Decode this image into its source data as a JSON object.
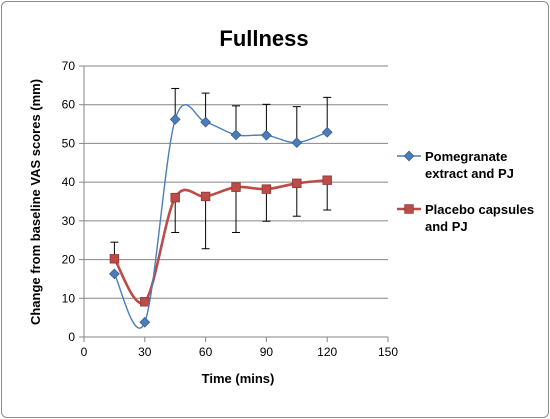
{
  "chart_data": {
    "type": "line",
    "title": "Fullness",
    "xlabel": "Time (mins)",
    "ylabel": "Change from baseline VAS scores (mm)",
    "xlim": [
      0,
      150
    ],
    "ylim": [
      0,
      70
    ],
    "x_ticks": [
      0,
      30,
      60,
      90,
      120,
      150
    ],
    "y_ticks": [
      0,
      10,
      20,
      30,
      40,
      50,
      60,
      70
    ],
    "grid": "horizontal",
    "legend_position": "right",
    "smoothed": true,
    "series": [
      {
        "name": "Pomegranate extract and PJ",
        "legend_lines": [
          "Pomegranate",
          "extract and PJ"
        ],
        "color": "#4a7ebb",
        "marker": "diamond",
        "x": [
          15,
          30,
          45,
          60,
          75,
          90,
          105,
          120
        ],
        "y": [
          16.3,
          3.8,
          56.2,
          55.5,
          52.2,
          52.1,
          50.2,
          52.9
        ],
        "error_plus": [
          0,
          0,
          8,
          7.5,
          7.5,
          8,
          9.3,
          9
        ],
        "error_minus": [
          0,
          0,
          0,
          0,
          0,
          0,
          0,
          0
        ]
      },
      {
        "name": "Placebo capsules and PJ",
        "legend_lines": [
          "Placebo capsules",
          "and PJ"
        ],
        "color": "#be4b48",
        "marker": "square",
        "x": [
          15,
          30,
          45,
          60,
          75,
          90,
          105,
          120
        ],
        "y": [
          20.2,
          9.1,
          36,
          36.3,
          38.7,
          38.2,
          39.7,
          40.5
        ],
        "error_plus": [
          4.3,
          0,
          0,
          0,
          0,
          0,
          0,
          0
        ],
        "error_minus": [
          0,
          0,
          9,
          13.5,
          11.7,
          8.3,
          8.5,
          7.7
        ]
      }
    ]
  }
}
